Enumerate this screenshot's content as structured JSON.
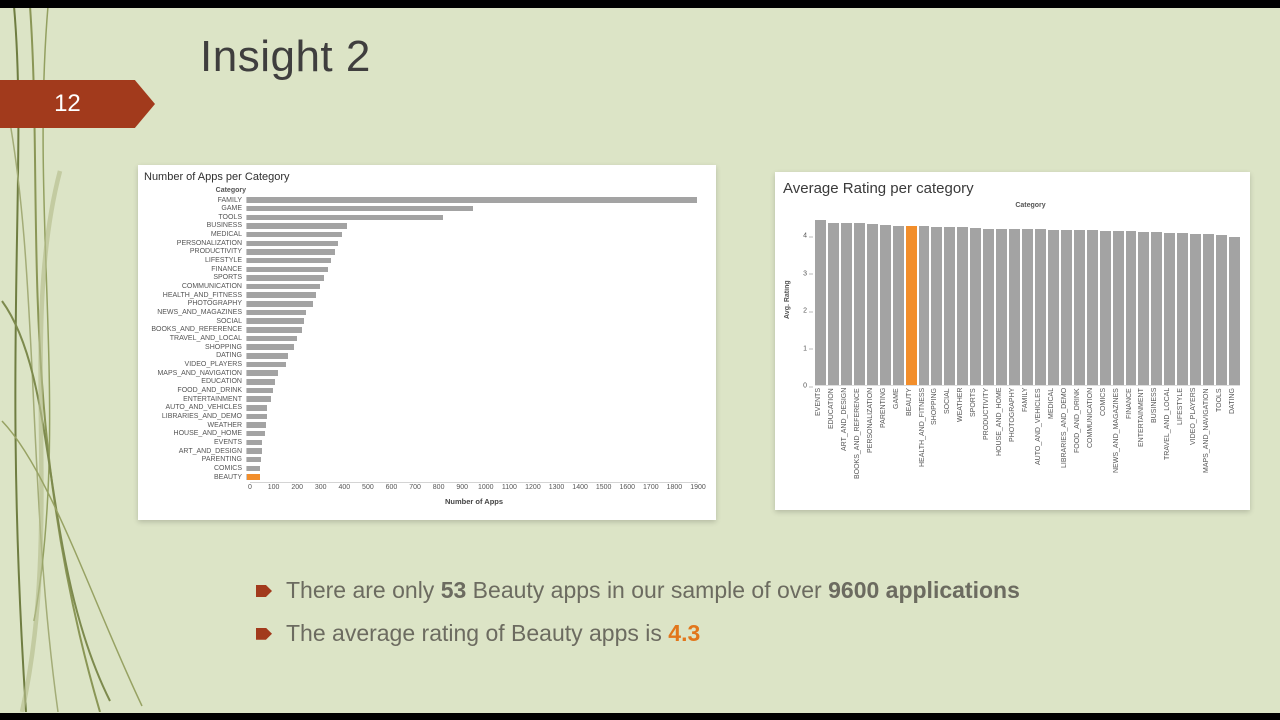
{
  "slide": {
    "title": "Insight 2",
    "page_number": "12"
  },
  "colors": {
    "background": "#dce4c6",
    "banner_red": "#a23a1c",
    "bar_gray": "#a3a3a3",
    "highlight_orange": "#f28e2b",
    "accent_text_orange": "#e2761b",
    "body_text": "#6c6b60",
    "title_text": "#3f3e3e"
  },
  "bullets": [
    {
      "segments": [
        {
          "text": "There are only ",
          "style": "normal"
        },
        {
          "text": "53",
          "style": "bold"
        },
        {
          "text": " Beauty apps in our sample of over ",
          "style": "normal"
        },
        {
          "text": "9600 applications",
          "style": "bold"
        }
      ]
    },
    {
      "segments": [
        {
          "text": "The average rating of Beauty apps is ",
          "style": "normal"
        },
        {
          "text": "4.3",
          "style": "accent"
        }
      ]
    }
  ],
  "chart_data": [
    {
      "type": "bar",
      "orientation": "horizontal",
      "title": "Number of Apps per Category",
      "axis_label": "Category",
      "xlabel": "Number of Apps",
      "xlim": [
        0,
        1900
      ],
      "xticks": [
        0,
        100,
        200,
        300,
        400,
        500,
        600,
        700,
        800,
        900,
        1000,
        1100,
        1200,
        1300,
        1400,
        1500,
        1600,
        1700,
        1800,
        1900
      ],
      "grid": false,
      "legend": false,
      "highlight_category": "BEAUTY",
      "categories": [
        "FAMILY",
        "GAME",
        "TOOLS",
        "BUSINESS",
        "MEDICAL",
        "PERSONALIZATION",
        "PRODUCTIVITY",
        "LIFESTYLE",
        "FINANCE",
        "SPORTS",
        "COMMUNICATION",
        "HEALTH_AND_FITNESS",
        "PHOTOGRAPHY",
        "NEWS_AND_MAGAZINES",
        "SOCIAL",
        "BOOKS_AND_REFERENCE",
        "TRAVEL_AND_LOCAL",
        "SHOPPING",
        "DATING",
        "VIDEO_PLAYERS",
        "MAPS_AND_NAVIGATION",
        "EDUCATION",
        "FOOD_AND_DRINK",
        "ENTERTAINMENT",
        "AUTO_AND_VEHICLES",
        "LIBRARIES_AND_DEMO",
        "WEATHER",
        "HOUSE_AND_HOME",
        "EVENTS",
        "ART_AND_DESIGN",
        "PARENTING",
        "COMICS",
        "BEAUTY"
      ],
      "values": [
        1895,
        950,
        825,
        420,
        400,
        382,
        370,
        352,
        340,
        325,
        306,
        290,
        276,
        250,
        240,
        230,
        212,
        200,
        172,
        164,
        131,
        119,
        110,
        102,
        85,
        84,
        80,
        74,
        64,
        62,
        58,
        56,
        53
      ]
    },
    {
      "type": "bar",
      "orientation": "vertical",
      "title": "Average Rating per category",
      "axis_label": "Category",
      "ylabel": "Avg. Rating",
      "ylim": [
        0,
        4.6
      ],
      "yticks": [
        0,
        1,
        2,
        3,
        4
      ],
      "grid": false,
      "legend": false,
      "highlight_category": "BEAUTY",
      "categories": [
        "EVENTS",
        "EDUCATION",
        "ART_AND_DESIGN",
        "BOOKS_AND_REFERENCE",
        "PERSONALIZATION",
        "PARENTING",
        "GAME",
        "BEAUTY",
        "HEALTH_AND_FITNESS",
        "SHOPPING",
        "SOCIAL",
        "WEATHER",
        "SPORTS",
        "PRODUCTIVITY",
        "HOUSE_AND_HOME",
        "PHOTOGRAPHY",
        "FAMILY",
        "AUTO_AND_VEHICLES",
        "MEDICAL",
        "LIBRARIES_AND_DEMO",
        "FOOD_AND_DRINK",
        "COMMUNICATION",
        "COMICS",
        "NEWS_AND_MAGAZINES",
        "FINANCE",
        "ENTERTAINMENT",
        "BUSINESS",
        "TRAVEL_AND_LOCAL",
        "LIFESTYLE",
        "VIDEO_PLAYERS",
        "MAPS_AND_NAVIGATION",
        "TOOLS",
        "DATING"
      ],
      "values": [
        4.44,
        4.36,
        4.36,
        4.35,
        4.33,
        4.3,
        4.29,
        4.28,
        4.27,
        4.26,
        4.25,
        4.24,
        4.22,
        4.21,
        4.2,
        4.19,
        4.19,
        4.19,
        4.18,
        4.17,
        4.16,
        4.16,
        4.15,
        4.13,
        4.13,
        4.12,
        4.11,
        4.1,
        4.08,
        4.06,
        4.05,
        4.04,
        3.97
      ]
    }
  ]
}
